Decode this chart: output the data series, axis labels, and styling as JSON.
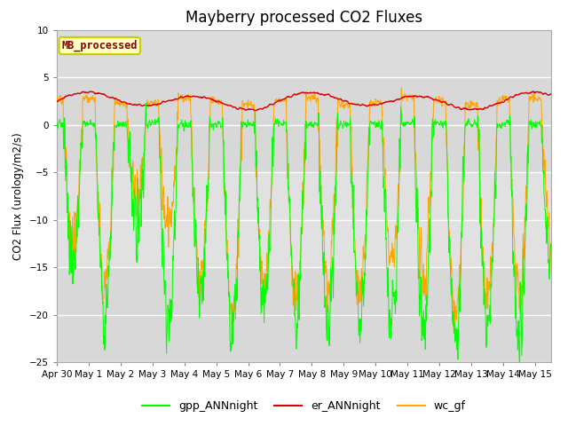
{
  "title": "Mayberry processed CO2 Fluxes",
  "ylabel": "CO2 Flux (urology/m2/s)",
  "ylim": [
    -25,
    10
  ],
  "yticks": [
    -25,
    -20,
    -15,
    -10,
    -5,
    0,
    5,
    10
  ],
  "background_color": "#ffffff",
  "plot_bg_color": "#d8d8d8",
  "gpp_color": "#00ff00",
  "er_color": "#dd0000",
  "wc_color": "#ffa500",
  "legend_label_gpp": "gpp_ANNnight",
  "legend_label_er": "er_ANNnight",
  "legend_label_wc": "wc_gf",
  "inset_label": "MB_processed",
  "inset_text_color": "#8b0000",
  "inset_bg_color": "#ffffc0",
  "inset_border_color": "#cccc00",
  "n_days": 15.5,
  "tick_positions": [
    0,
    1,
    2,
    3,
    4,
    5,
    6,
    7,
    8,
    9,
    10,
    11,
    12,
    13,
    14,
    15
  ],
  "tick_labels": [
    "Apr 30",
    "May 1",
    "May 2",
    "May 3",
    "May 4",
    "May 5",
    "May 6",
    "May 7",
    "May 8",
    "May 9",
    "May 10",
    "May 11",
    "May 12",
    "May 13",
    "May 14",
    "May 15"
  ],
  "gpp_depths": [
    15,
    20,
    10,
    21,
    18,
    22,
    19,
    21,
    20,
    21,
    20,
    21,
    23,
    21,
    22,
    15
  ],
  "wc_depths": [
    12,
    17,
    8,
    11,
    16,
    20,
    17,
    19,
    17,
    18,
    15,
    16,
    20,
    19,
    18,
    12
  ],
  "er_base": 2.5,
  "er_amplitude": 0.7,
  "er_period": 3.5
}
